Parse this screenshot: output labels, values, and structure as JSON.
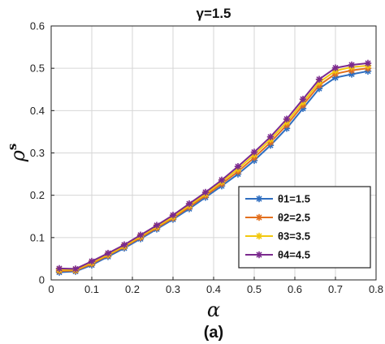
{
  "chart_data": {
    "type": "line",
    "title": "γ=1.5",
    "xlabel": "α",
    "ylabel_base": "ρ",
    "ylabel_sup": "s",
    "caption": "(a)",
    "xlim": [
      0,
      0.8
    ],
    "ylim": [
      0,
      0.6
    ],
    "xticks": [
      "0",
      "0.1",
      "0.2",
      "0.3",
      "0.4",
      "0.5",
      "0.6",
      "0.7",
      "0.8"
    ],
    "yticks": [
      "0",
      "0.1",
      "0.2",
      "0.3",
      "0.4",
      "0.5",
      "0.6"
    ],
    "grid": true,
    "legend_position": "lower-right",
    "x": [
      0.02,
      0.06,
      0.1,
      0.14,
      0.18,
      0.22,
      0.26,
      0.3,
      0.34,
      0.38,
      0.42,
      0.46,
      0.5,
      0.54,
      0.58,
      0.62,
      0.66,
      0.7,
      0.74,
      0.78
    ],
    "series": [
      {
        "name": "θ1=1.5",
        "color": "#2f6ec0",
        "values": [
          0.018,
          0.02,
          0.035,
          0.055,
          0.075,
          0.097,
          0.12,
          0.143,
          0.168,
          0.195,
          0.222,
          0.25,
          0.282,
          0.318,
          0.358,
          0.405,
          0.452,
          0.478,
          0.486,
          0.493
        ]
      },
      {
        "name": "θ2=2.5",
        "color": "#e3701e",
        "values": [
          0.021,
          0.022,
          0.038,
          0.058,
          0.078,
          0.1,
          0.123,
          0.146,
          0.172,
          0.199,
          0.227,
          0.256,
          0.289,
          0.325,
          0.366,
          0.413,
          0.46,
          0.487,
          0.495,
          0.5
        ]
      },
      {
        "name": "θ3=3.5",
        "color": "#f2c80f",
        "values": [
          0.024,
          0.024,
          0.041,
          0.06,
          0.08,
          0.103,
          0.126,
          0.149,
          0.176,
          0.203,
          0.232,
          0.262,
          0.296,
          0.332,
          0.373,
          0.42,
          0.467,
          0.494,
          0.503,
          0.506
        ]
      },
      {
        "name": "θ4=4.5",
        "color": "#7b2a8e",
        "values": [
          0.027,
          0.026,
          0.044,
          0.063,
          0.083,
          0.106,
          0.129,
          0.153,
          0.18,
          0.207,
          0.236,
          0.268,
          0.302,
          0.338,
          0.38,
          0.427,
          0.474,
          0.501,
          0.508,
          0.512
        ]
      }
    ]
  }
}
